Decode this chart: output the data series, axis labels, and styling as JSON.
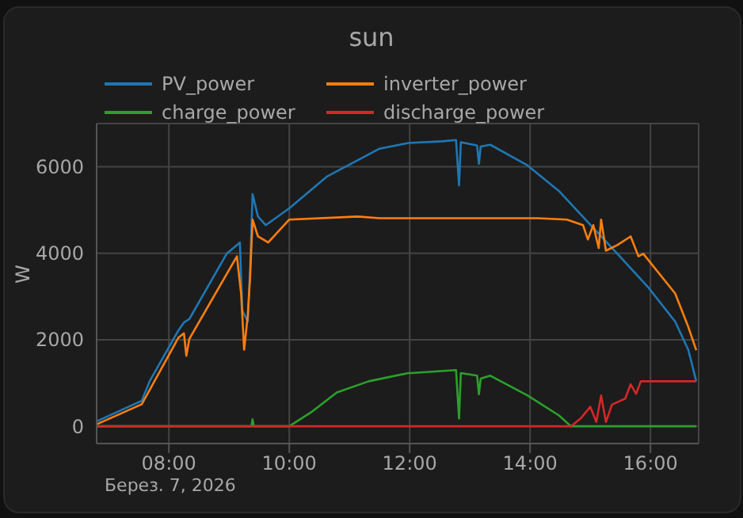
{
  "chart_data": {
    "type": "line",
    "title": "sun",
    "ylabel": "W",
    "annotations": [
      "Берез. 7, 2026"
    ],
    "xlim": [
      6.8,
      16.8
    ],
    "xticks": [
      {
        "value": 8,
        "label": "08:00"
      },
      {
        "value": 10,
        "label": "10:00"
      },
      {
        "value": 12,
        "label": "12:00"
      },
      {
        "value": 14,
        "label": "14:00"
      },
      {
        "value": 16,
        "label": "16:00"
      }
    ],
    "ylim": [
      -400,
      7000
    ],
    "yticks": [
      0,
      2000,
      4000,
      6000
    ],
    "grid": true,
    "legend": "top",
    "marker": "none",
    "line_style": "solid",
    "series": [
      {
        "name": "PV_power",
        "color": "#1f77b4",
        "x": [
          6.81,
          7.55,
          7.68,
          8.16,
          8.25,
          8.34,
          8.96,
          9.18,
          9.22,
          9.31,
          9.35,
          9.39,
          9.48,
          9.61,
          10.0,
          10.62,
          11.5,
          11.98,
          12.55,
          12.77,
          12.82,
          12.85,
          13.12,
          13.15,
          13.18,
          13.34,
          13.96,
          14.48,
          14.92,
          15.45,
          15.97,
          16.41,
          16.63,
          16.76
        ],
        "values": [
          120,
          590,
          1040,
          2220,
          2400,
          2480,
          3990,
          4250,
          2680,
          2420,
          3660,
          5370,
          4850,
          4650,
          5040,
          5770,
          6420,
          6550,
          6590,
          6620,
          5570,
          6570,
          6490,
          6070,
          6470,
          6510,
          6030,
          5440,
          4780,
          3990,
          3200,
          2420,
          1760,
          1040
        ]
      },
      {
        "name": "inverter_power",
        "color": "#ff7f0e",
        "x": [
          6.81,
          7.55,
          8.16,
          8.25,
          8.29,
          8.34,
          9.13,
          9.2,
          9.25,
          9.31,
          9.35,
          9.39,
          9.48,
          9.65,
          10.0,
          11.14,
          11.5,
          14.13,
          14.61,
          14.88,
          14.96,
          15.05,
          15.14,
          15.18,
          15.26,
          15.45,
          15.67,
          15.8,
          15.88,
          16.41,
          16.63,
          16.76
        ],
        "values": [
          50,
          510,
          2050,
          2150,
          1630,
          2020,
          3930,
          3070,
          1770,
          2550,
          3470,
          4780,
          4390,
          4250,
          4780,
          4850,
          4810,
          4810,
          4780,
          4650,
          4320,
          4650,
          4120,
          4780,
          4060,
          4190,
          4390,
          3930,
          3990,
          3070,
          2290,
          1760
        ]
      },
      {
        "name": "charge_power",
        "color": "#2ca02c",
        "x": [
          6.81,
          9.37,
          9.39,
          9.41,
          10.0,
          10.36,
          10.79,
          11.32,
          11.98,
          12.03,
          12.77,
          12.82,
          12.85,
          13.12,
          13.15,
          13.18,
          13.34,
          13.96,
          14.48,
          14.68,
          16.76
        ],
        "values": [
          0,
          0,
          160,
          0,
          0,
          320,
          780,
          1040,
          1230,
          1230,
          1300,
          180,
          1230,
          1170,
          740,
          1100,
          1170,
          710,
          250,
          0,
          0
        ]
      },
      {
        "name": "discharge_power",
        "color": "#d62728",
        "x": [
          6.81,
          14.68,
          14.84,
          15.0,
          15.1,
          15.18,
          15.26,
          15.36,
          15.58,
          15.67,
          15.76,
          15.84,
          16.76
        ],
        "values": [
          0,
          0,
          180,
          450,
          100,
          710,
          100,
          500,
          640,
          970,
          750,
          1040,
          1040
        ]
      }
    ]
  }
}
